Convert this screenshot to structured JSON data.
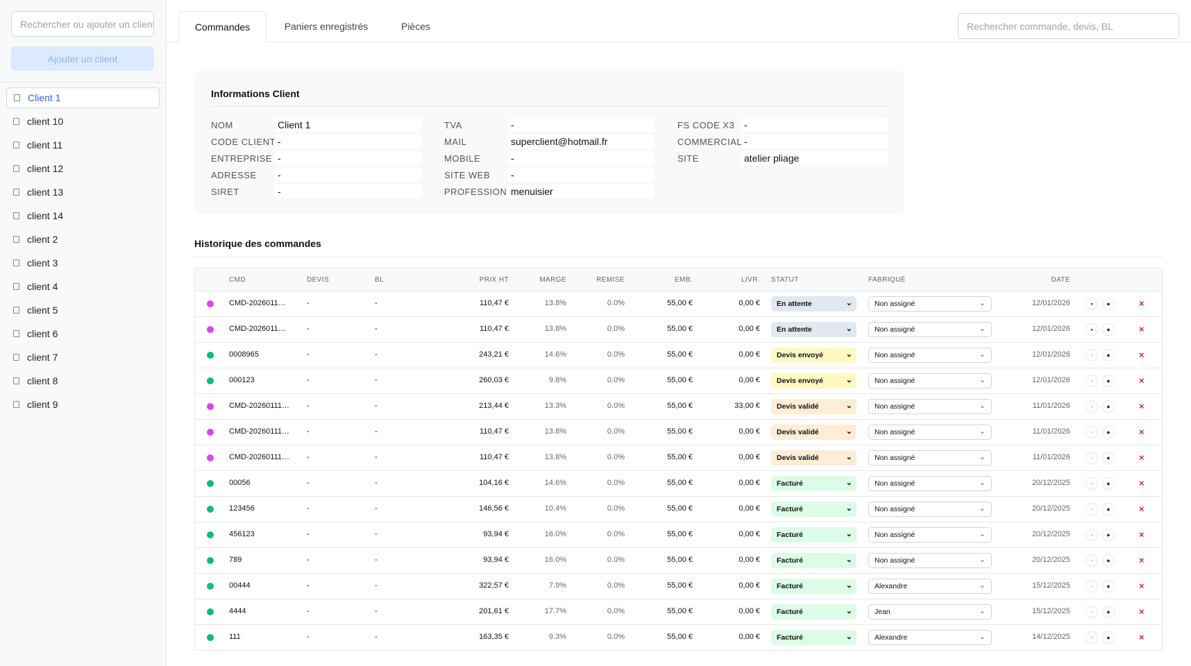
{
  "sidebar": {
    "search_placeholder": "Rechercher ou ajouter un client",
    "add_button": "Ajouter un client",
    "clients": [
      "Client 1",
      "client 10",
      "client 11",
      "client 12",
      "client 13",
      "client 14",
      "client 2",
      "client 3",
      "client 4",
      "client 5",
      "client 6",
      "client 7",
      "client 8",
      "client 9"
    ]
  },
  "tabs": [
    "Commandes",
    "Paniers enregistrés",
    "Pièces"
  ],
  "search_placeholder": "Rechercher commande, devis, BL",
  "info": {
    "title": "Informations Client",
    "columns": [
      [
        {
          "label": "NOM",
          "value": "Client 1"
        },
        {
          "label": "CODE CLIENT",
          "value": "-"
        },
        {
          "label": "ENTREPRISE",
          "value": "-"
        },
        {
          "label": "ADRESSE",
          "value": "-"
        },
        {
          "label": "SIRET",
          "value": "-"
        }
      ],
      [
        {
          "label": "TVA",
          "value": "-"
        },
        {
          "label": "MAIL",
          "value": "superclient@hotmail.fr"
        },
        {
          "label": "MOBILE",
          "value": "-"
        },
        {
          "label": "SITE WEB",
          "value": "-"
        },
        {
          "label": "PROFESSION",
          "value": "menuisier"
        }
      ],
      [
        {
          "label": "FS CODE X3",
          "value": "-"
        },
        {
          "label": "COMMERCIAL",
          "value": "-"
        },
        {
          "label": "SITE",
          "value": "atelier pliage"
        }
      ]
    ]
  },
  "history": {
    "title": "Historique des commandes",
    "headers": [
      "CMD",
      "DEVIS",
      "BL",
      "PRIX HT",
      "MARGE",
      "REMISE",
      "EMB.",
      "LIVR.",
      "STATUT",
      "FABRIQUÉ",
      "DATE"
    ],
    "rows": [
      {
        "dot": "#d946ef",
        "cells": [
          "CMD-2026011…",
          "-",
          "-",
          "110,47 €",
          "13.8%",
          "0.0%",
          "55,00 €",
          "0,00 €",
          "En attente",
          "Non assigné",
          "12/01/2026"
        ],
        "status_color": "#e2e8f0",
        "cart": true
      },
      {
        "dot": "#d946ef",
        "cells": [
          "CMD-2026011…",
          "-",
          "-",
          "110,47 €",
          "13.8%",
          "0.0%",
          "55,00 €",
          "0,00 €",
          "En attente",
          "Non assigné",
          "12/01/2026"
        ],
        "status_color": "#e2e8f0",
        "cart": true
      },
      {
        "dot": "#10b981",
        "cells": [
          "0008965",
          "-",
          "-",
          "243,21 €",
          "14.6%",
          "0.0%",
          "55,00 €",
          "0,00 €",
          "Devis envoyé",
          "Non assigné",
          "12/01/2026"
        ],
        "status_color": "#fef9c3",
        "cart": false
      },
      {
        "dot": "#10b981",
        "cells": [
          "000123",
          "-",
          "-",
          "260,03 €",
          "9.8%",
          "0.0%",
          "55,00 €",
          "0,00 €",
          "Devis envoyé",
          "Non assigné",
          "12/01/2026"
        ],
        "status_color": "#fef9c3",
        "cart": false
      },
      {
        "dot": "#d946ef",
        "cells": [
          "CMD-20260111…",
          "-",
          "-",
          "213,44 €",
          "13.3%",
          "0.0%",
          "55,00 €",
          "33,00 €",
          "Devis validé",
          "Non assigné",
          "11/01/2026"
        ],
        "status_color": "#ffedd5",
        "cart": false
      },
      {
        "dot": "#d946ef",
        "cells": [
          "CMD-20260111…",
          "-",
          "-",
          "110,47 €",
          "13.8%",
          "0.0%",
          "55,00 €",
          "0,00 €",
          "Devis validé",
          "Non assigné",
          "11/01/2026"
        ],
        "status_color": "#ffedd5",
        "cart": false
      },
      {
        "dot": "#d946ef",
        "cells": [
          "CMD-20260111…",
          "-",
          "-",
          "110,47 €",
          "13.8%",
          "0.0%",
          "55,00 €",
          "0,00 €",
          "Devis validé",
          "Non assigné",
          "11/01/2026"
        ],
        "status_color": "#ffedd5",
        "cart": false
      },
      {
        "dot": "#10b981",
        "cells": [
          "00056",
          "-",
          "-",
          "104,16 €",
          "14.6%",
          "0.0%",
          "55,00 €",
          "0,00 €",
          "Facturé",
          "Non assigné",
          "20/12/2025"
        ],
        "status_color": "#dcfce7",
        "cart": false
      },
      {
        "dot": "#10b981",
        "cells": [
          "123456",
          "-",
          "-",
          "146,56 €",
          "10.4%",
          "0.0%",
          "55,00 €",
          "0,00 €",
          "Facturé",
          "Non assigné",
          "20/12/2025"
        ],
        "status_color": "#dcfce7",
        "cart": false
      },
      {
        "dot": "#10b981",
        "cells": [
          "456123",
          "-",
          "-",
          "93,94 €",
          "16.0%",
          "0.0%",
          "55,00 €",
          "0,00 €",
          "Facturé",
          "Non assigné",
          "20/12/2025"
        ],
        "status_color": "#dcfce7",
        "cart": false
      },
      {
        "dot": "#10b981",
        "cells": [
          "789",
          "-",
          "-",
          "93,94 €",
          "16.0%",
          "0.0%",
          "55,00 €",
          "0,00 €",
          "Facturé",
          "Non assigné",
          "20/12/2025"
        ],
        "status_color": "#dcfce7",
        "cart": false
      },
      {
        "dot": "#10b981",
        "cells": [
          "00444",
          "-",
          "-",
          "322,57 €",
          "7.9%",
          "0.0%",
          "55,00 €",
          "0,00 €",
          "Facturé",
          "Alexandre",
          "15/12/2025"
        ],
        "status_color": "#dcfce7",
        "cart": false
      },
      {
        "dot": "#10b981",
        "cells": [
          "4444",
          "-",
          "-",
          "201,61 €",
          "17.7%",
          "0.0%",
          "55,00 €",
          "0,00 €",
          "Facturé",
          "Jean",
          "15/12/2025"
        ],
        "status_color": "#dcfce7",
        "cart": false
      },
      {
        "dot": "#10b981",
        "cells": [
          "111",
          "-",
          "-",
          "163,35 €",
          "9.3%",
          "0.0%",
          "55,00 €",
          "0,00 €",
          "Facturé",
          "Alexandre",
          "14/12/2025"
        ],
        "status_color": "#dcfce7",
        "cart": false
      }
    ]
  }
}
